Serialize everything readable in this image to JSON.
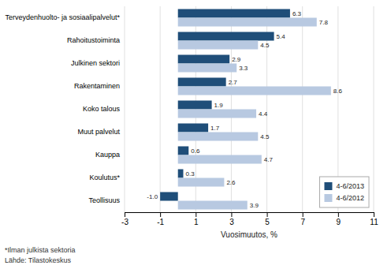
{
  "chart_data": {
    "type": "bar",
    "orientation": "horizontal",
    "categories": [
      "Teollisuus",
      "Koulutus*",
      "Kauppa",
      "Muut palvelut",
      "Koko talous",
      "Rakentaminen",
      "Julkinen sektori",
      "Rahoitustoiminta",
      "Terveydenhuolto- ja sosiaalipalvelut*"
    ],
    "series": [
      {
        "name": "4-6/2013",
        "color": "#1f4e79",
        "values": [
          -1.0,
          0.3,
          0.6,
          1.7,
          1.9,
          2.7,
          2.9,
          5.4,
          6.3
        ],
        "value_labels": [
          "-1.0",
          "0.3",
          "0.6",
          "1.7",
          "1.9",
          "2.7",
          "2.9",
          "5.4",
          "6.3"
        ]
      },
      {
        "name": "4-6/2012",
        "color": "#b8c9e1",
        "values": [
          3.9,
          2.6,
          4.7,
          4.5,
          4.4,
          8.6,
          3.3,
          4.5,
          7.8
        ],
        "value_labels": [
          "3.9",
          "2.6",
          "4.7",
          "4.5",
          "4.4",
          "8.6",
          "3.3",
          "4.5",
          "7.8"
        ]
      }
    ],
    "xlabel": "Vuosimuutos, %",
    "xlim": [
      -3,
      11
    ],
    "xticks": [
      -3,
      -1,
      1,
      3,
      5,
      7,
      9,
      11
    ],
    "grid": true,
    "legend": "lower right",
    "data_labels": true,
    "annotations": [
      "*Ilman julkista sektoria",
      "Lähde: Tilastokeskus"
    ]
  }
}
